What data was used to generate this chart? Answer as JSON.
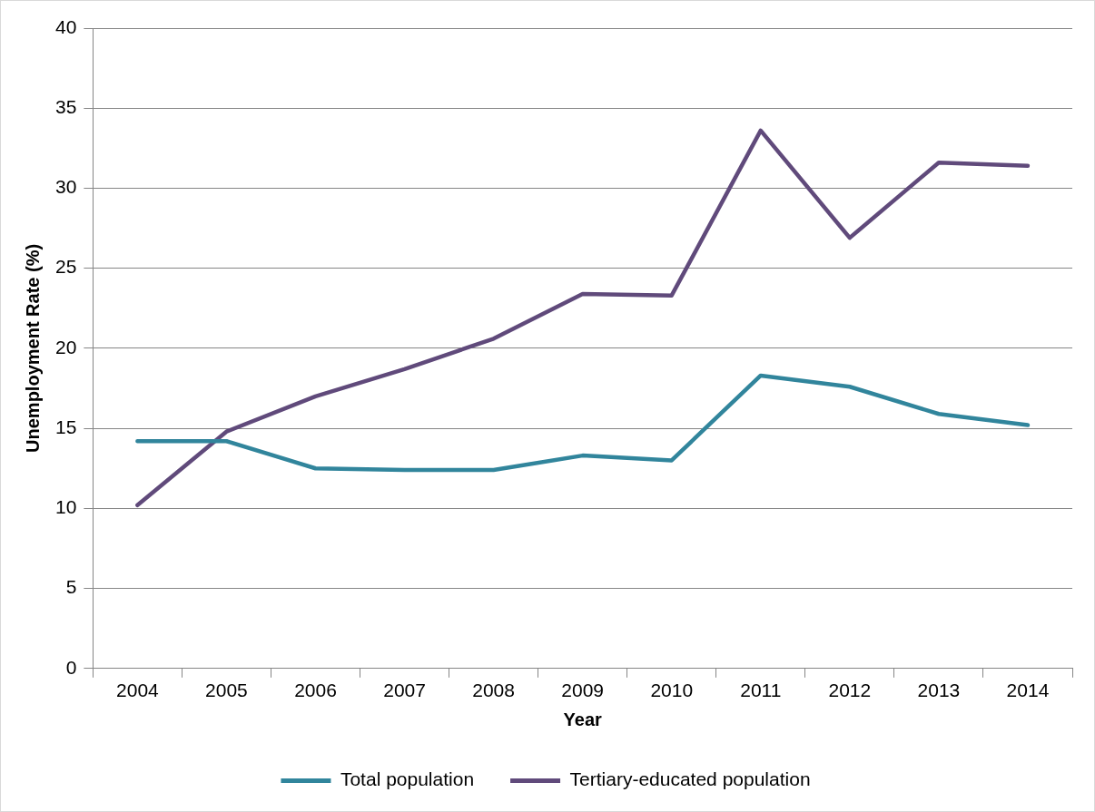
{
  "chart_data": {
    "type": "line",
    "xlabel": "Year",
    "ylabel": "Unemployment Rate (%)",
    "categories": [
      "2004",
      "2005",
      "2006",
      "2007",
      "2008",
      "2009",
      "2010",
      "2011",
      "2012",
      "2013",
      "2014"
    ],
    "series": [
      {
        "name": "Total population",
        "color": "#31859c",
        "values": [
          14.2,
          14.2,
          12.5,
          12.4,
          12.4,
          13.3,
          13.0,
          18.3,
          17.6,
          15.9,
          15.2
        ]
      },
      {
        "name": "Tertiary-educated population",
        "color": "#604a7b",
        "values": [
          10.2,
          14.8,
          17.0,
          18.7,
          20.6,
          23.4,
          23.3,
          33.6,
          26.9,
          31.6,
          31.4
        ]
      }
    ],
    "ylim": [
      0,
      40
    ],
    "yticks": [
      0,
      5,
      10,
      15,
      20,
      25,
      30,
      35,
      40
    ],
    "grid": "y",
    "legend": "bottom",
    "marker": "none",
    "line_style": "solid"
  }
}
